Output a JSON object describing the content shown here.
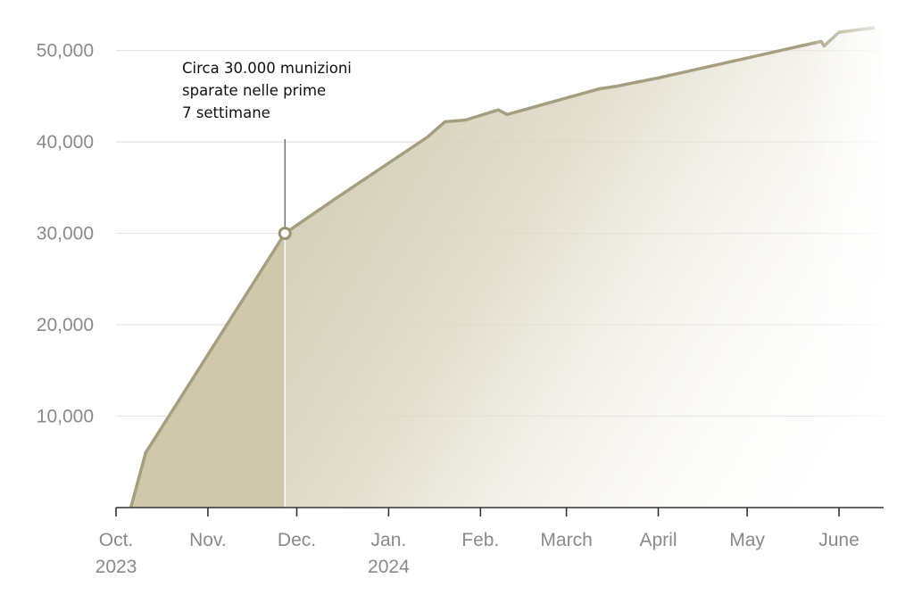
{
  "chart_data": {
    "type": "area",
    "title": "",
    "xlabel": "",
    "ylabel": "",
    "ylim": [
      0,
      52500
    ],
    "yticks": [
      10000,
      20000,
      30000,
      40000,
      50000
    ],
    "ytick_labels": [
      "10,000",
      "20,000",
      "30,000",
      "40,000",
      "50,000"
    ],
    "xticks": [
      {
        "date": "2023-10-01",
        "label": "Oct.",
        "year": "2023"
      },
      {
        "date": "2023-11-01",
        "label": "Nov.",
        "year": ""
      },
      {
        "date": "2023-12-01",
        "label": "Dec.",
        "year": ""
      },
      {
        "date": "2024-01-01",
        "label": "Jan.",
        "year": "2024"
      },
      {
        "date": "2024-02-01",
        "label": "Feb.",
        "year": ""
      },
      {
        "date": "2024-03-01",
        "label": "March",
        "year": ""
      },
      {
        "date": "2024-04-01",
        "label": "April",
        "year": ""
      },
      {
        "date": "2024-05-01",
        "label": "May",
        "year": ""
      },
      {
        "date": "2024-06-01",
        "label": "June",
        "year": ""
      }
    ],
    "grid": true,
    "series": [
      {
        "points": [
          {
            "x": "2023-10-06",
            "y": 0
          },
          {
            "x": "2023-10-11",
            "y": 6000
          },
          {
            "x": "2023-11-27",
            "y": 30000
          },
          {
            "x": "2023-12-15",
            "y": 34000
          },
          {
            "x": "2024-01-14",
            "y": 40500
          },
          {
            "x": "2024-01-20",
            "y": 42200
          },
          {
            "x": "2024-01-27",
            "y": 42400
          },
          {
            "x": "2024-02-07",
            "y": 43500
          },
          {
            "x": "2024-02-10",
            "y": 43000
          },
          {
            "x": "2024-03-12",
            "y": 45800
          },
          {
            "x": "2024-03-18",
            "y": 46100
          },
          {
            "x": "2024-04-01",
            "y": 47000
          },
          {
            "x": "2024-05-26",
            "y": 51000
          },
          {
            "x": "2024-05-27",
            "y": 50500
          },
          {
            "x": "2024-06-01",
            "y": 52000
          },
          {
            "x": "2024-06-13",
            "y": 52500
          }
        ],
        "color": "#a69f7f"
      }
    ],
    "highlight": {
      "x": "2023-11-27",
      "y": 30000
    },
    "annotation": {
      "lines": [
        "Circa 30.000 munizioni",
        "sparate nelle prime",
        "7 settimane"
      ]
    }
  }
}
